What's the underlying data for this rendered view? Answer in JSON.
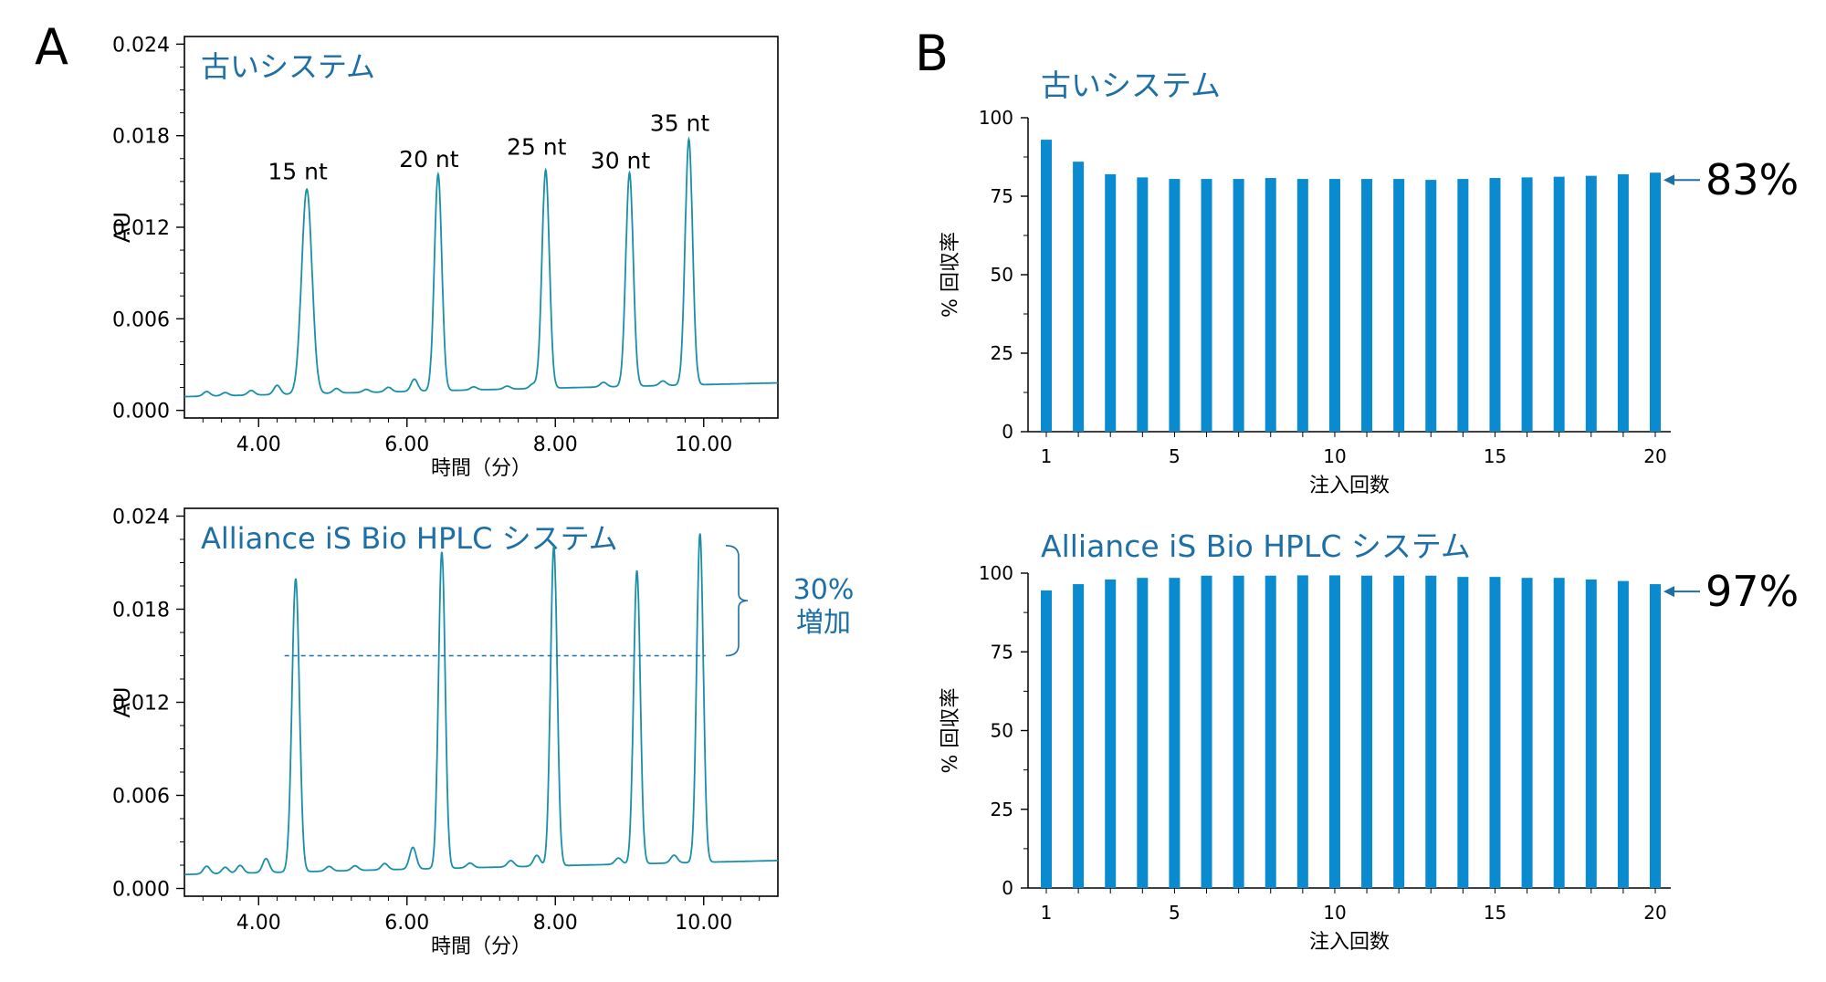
{
  "colors": {
    "trace": "#1a8fa8",
    "bar": "#0a8bd0",
    "title_blue": "#1d6fa5",
    "annot_blue": "#1d6fa5",
    "axis": "#000000"
  },
  "panel_labels": {
    "a": "A",
    "b": "B"
  },
  "chart_data": [
    {
      "type": "line",
      "panel": "A",
      "title": "古いシステム",
      "xlabel": "時間（分）",
      "ylabel": "AU",
      "xlim": [
        3.0,
        11.0
      ],
      "ylim": [
        -0.0005,
        0.0245
      ],
      "xticks": [
        4.0,
        6.0,
        8.0,
        10.0
      ],
      "xtick_labels": [
        "4.00",
        "6.00",
        "8.00",
        "10.00"
      ],
      "yticks": [
        0.0,
        0.006,
        0.012,
        0.018,
        0.024
      ],
      "ytick_labels": [
        "0.000",
        "0.006",
        "0.012",
        "0.018",
        "0.024"
      ],
      "baseline": {
        "start": 0.0009,
        "end": 0.0018
      },
      "peaks": [
        {
          "label": "15 nt",
          "x": 4.65,
          "y": 0.0134,
          "width": 0.07
        },
        {
          "label": "20 nt",
          "x": 6.42,
          "y": 0.0142,
          "width": 0.05
        },
        {
          "label": "25 nt",
          "x": 7.87,
          "y": 0.0143,
          "width": 0.05
        },
        {
          "label": "30 nt",
          "x": 9.0,
          "y": 0.014,
          "width": 0.05
        },
        {
          "label": "35 nt",
          "x": 9.8,
          "y": 0.0161,
          "width": 0.05
        }
      ],
      "minor_peaks": [
        {
          "x": 3.3,
          "y": 0.0003
        },
        {
          "x": 3.55,
          "y": 0.0002
        },
        {
          "x": 3.9,
          "y": 0.0003
        },
        {
          "x": 4.25,
          "y": 0.0006
        },
        {
          "x": 5.05,
          "y": 0.0003
        },
        {
          "x": 5.45,
          "y": 0.0002
        },
        {
          "x": 5.75,
          "y": 0.0003
        },
        {
          "x": 6.1,
          "y": 0.0008
        },
        {
          "x": 6.9,
          "y": 0.0002
        },
        {
          "x": 7.35,
          "y": 0.0002
        },
        {
          "x": 7.7,
          "y": 0.0003
        },
        {
          "x": 8.65,
          "y": 0.0003
        },
        {
          "x": 9.45,
          "y": 0.0003
        }
      ]
    },
    {
      "type": "line",
      "panel": "A",
      "title": "Alliance iS Bio HPLC システム",
      "xlabel": "時間（分）",
      "ylabel": "AU",
      "xlim": [
        3.0,
        11.0
      ],
      "ylim": [
        -0.0005,
        0.0245
      ],
      "xticks": [
        4.0,
        6.0,
        8.0,
        10.0
      ],
      "xtick_labels": [
        "4.00",
        "6.00",
        "8.00",
        "10.00"
      ],
      "yticks": [
        0.0,
        0.006,
        0.012,
        0.018,
        0.024
      ],
      "ytick_labels": [
        "0.000",
        "0.006",
        "0.012",
        "0.018",
        "0.024"
      ],
      "baseline": {
        "start": 0.0009,
        "end": 0.0018
      },
      "peaks": [
        {
          "x": 4.5,
          "y": 0.0189,
          "width": 0.05
        },
        {
          "x": 6.47,
          "y": 0.0204,
          "width": 0.045
        },
        {
          "x": 7.98,
          "y": 0.0206,
          "width": 0.045
        },
        {
          "x": 9.1,
          "y": 0.0189,
          "width": 0.045
        },
        {
          "x": 9.95,
          "y": 0.0212,
          "width": 0.045
        }
      ],
      "minor_peaks": [
        {
          "x": 3.3,
          "y": 0.0005
        },
        {
          "x": 3.55,
          "y": 0.0004
        },
        {
          "x": 3.75,
          "y": 0.0005
        },
        {
          "x": 4.1,
          "y": 0.0009
        },
        {
          "x": 4.95,
          "y": 0.0003
        },
        {
          "x": 5.3,
          "y": 0.0003
        },
        {
          "x": 5.7,
          "y": 0.0004
        },
        {
          "x": 6.08,
          "y": 0.0014
        },
        {
          "x": 6.85,
          "y": 0.0003
        },
        {
          "x": 7.4,
          "y": 0.0004
        },
        {
          "x": 7.75,
          "y": 0.0007
        },
        {
          "x": 8.85,
          "y": 0.0004
        },
        {
          "x": 9.6,
          "y": 0.0005
        }
      ],
      "reference_line_y": 0.015,
      "annotation": {
        "line1": "30%",
        "line2": "増加"
      }
    },
    {
      "type": "bar",
      "panel": "B",
      "title": "古いシステム",
      "xlabel": "注入回数",
      "ylabel": "% 回収率",
      "ylim": [
        0,
        100
      ],
      "yticks": [
        0,
        25,
        50,
        75,
        100
      ],
      "xtick_values": [
        1,
        5,
        10,
        15,
        20
      ],
      "categories": [
        1,
        2,
        3,
        4,
        5,
        6,
        7,
        8,
        9,
        10,
        11,
        12,
        13,
        14,
        15,
        16,
        17,
        18,
        19,
        20
      ],
      "values": [
        93,
        86,
        82,
        81,
        80.5,
        80.5,
        80.5,
        80.8,
        80.5,
        80.5,
        80.5,
        80.5,
        80.2,
        80.5,
        80.8,
        81,
        81.2,
        81.5,
        82,
        82.5
      ],
      "callout": "83%"
    },
    {
      "type": "bar",
      "panel": "B",
      "title": "Alliance iS Bio HPLC システム",
      "xlabel": "注入回数",
      "ylabel": "% 回収率",
      "ylim": [
        0,
        100
      ],
      "yticks": [
        0,
        25,
        50,
        75,
        100
      ],
      "xtick_values": [
        1,
        5,
        10,
        15,
        20
      ],
      "categories": [
        1,
        2,
        3,
        4,
        5,
        6,
        7,
        8,
        9,
        10,
        11,
        12,
        13,
        14,
        15,
        16,
        17,
        18,
        19,
        20
      ],
      "values": [
        94.5,
        96.5,
        98,
        98.5,
        98.5,
        99.2,
        99.2,
        99.2,
        99.3,
        99.3,
        99.2,
        99.2,
        99.2,
        98.8,
        98.8,
        98.5,
        98.5,
        98,
        97.5,
        96.5
      ],
      "callout": "97%"
    }
  ]
}
